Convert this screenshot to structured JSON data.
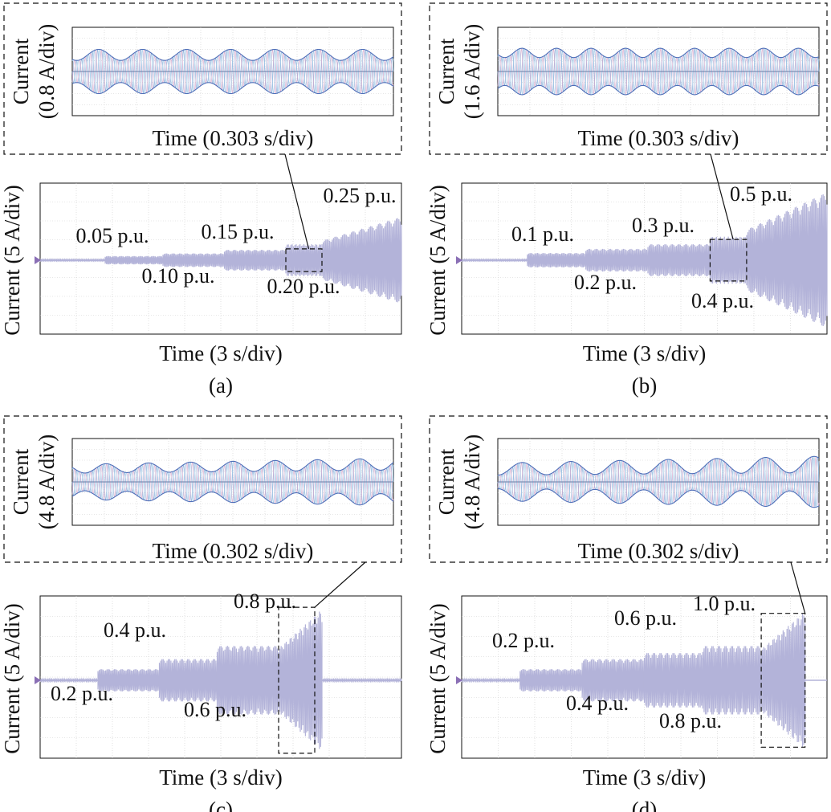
{
  "colors": {
    "waveform": "#b3b3d9",
    "zoom_trace_1": "#7ea6d6",
    "zoom_trace_2": "#d9a6c9",
    "zoom_trace_3": "#9cc7e6",
    "zoom_trace_4": "#4f6fb8",
    "grid": "#cfcfcf",
    "marker": "#8a6fb5",
    "frame": "#111111"
  },
  "chart_data": [
    {
      "id": "a",
      "caption": "(a)",
      "type": "line",
      "zoom": {
        "ylabel_top": "Current",
        "ylabel_bottom": "(0.8 A/div)",
        "xlabel": "Time (0.303 s/div)",
        "beat_cycles": 7.3,
        "phase": 0.4,
        "depth": 0.25,
        "amplitude_divs": 2.0
      },
      "main": {
        "ylabel": "Current (5 A/div)",
        "xlabel": "Time (3 s/div)",
        "x_divs": 10,
        "y_divs": 8,
        "zoom_window": {
          "x_start_div": 6.8,
          "x_end_div": 7.8,
          "half_height_divs": 0.6
        },
        "segments": [
          {
            "label": "",
            "x_start_div": 0,
            "x_end_div": 1.8,
            "amplitude_divs": 0.04
          },
          {
            "label": "0.05 p.u.",
            "x_start_div": 1.8,
            "x_end_div": 3.4,
            "amplitude_divs": 0.22
          },
          {
            "label": "0.10 p.u.",
            "x_start_div": 3.4,
            "x_end_div": 5.1,
            "amplitude_divs": 0.36
          },
          {
            "label": "0.15 p.u.",
            "x_start_div": 5.1,
            "x_end_div": 6.8,
            "amplitude_divs": 0.55
          },
          {
            "label": "0.20 p.u.",
            "x_start_div": 6.8,
            "x_end_div": 7.8,
            "amplitude_divs": 0.85
          },
          {
            "label": "0.25 p.u.",
            "x_start_div": 7.8,
            "x_end_div": 10,
            "amplitude_divs": 2.3,
            "growing": true
          }
        ]
      }
    },
    {
      "id": "b",
      "caption": "(b)",
      "type": "line",
      "zoom": {
        "ylabel_top": "Current",
        "ylabel_bottom": "(1.6 A/div)",
        "xlabel": "Time (0.303 s/div)",
        "beat_cycles": 9.3,
        "phase": 0.3,
        "depth": 0.2,
        "amplitude_divs": 2.1
      },
      "main": {
        "ylabel": "Current (5 A/div)",
        "xlabel": "Time (3 s/div)",
        "x_divs": 10,
        "y_divs": 8,
        "zoom_window": {
          "x_start_div": 6.8,
          "x_end_div": 7.8,
          "half_height_divs": 1.1
        },
        "segments": [
          {
            "label": "",
            "x_start_div": 0,
            "x_end_div": 1.8,
            "amplitude_divs": 0.04
          },
          {
            "label": "0.1 p.u.",
            "x_start_div": 1.8,
            "x_end_div": 3.4,
            "amplitude_divs": 0.38
          },
          {
            "label": "0.2 p.u.",
            "x_start_div": 3.4,
            "x_end_div": 5.1,
            "amplitude_divs": 0.6
          },
          {
            "label": "0.3 p.u.",
            "x_start_div": 5.1,
            "x_end_div": 6.8,
            "amplitude_divs": 0.85
          },
          {
            "label": "0.4 p.u.",
            "x_start_div": 6.8,
            "x_end_div": 7.8,
            "amplitude_divs": 1.25
          },
          {
            "label": "0.5 p.u.",
            "x_start_div": 7.8,
            "x_end_div": 10,
            "amplitude_divs": 3.6,
            "growing": true
          }
        ]
      }
    },
    {
      "id": "c",
      "caption": "(c)",
      "type": "line",
      "zoom": {
        "ylabel_top": "Current",
        "ylabel_bottom": "(4.8 A/div)",
        "xlabel": "Time (0.302 s/div)",
        "beat_cycles": 7.6,
        "phase": 0.2,
        "depth": 0.25,
        "amplitude_divs": 1.9,
        "growing": true
      },
      "main": {
        "ylabel": "Current (5 A/div)",
        "xlabel": "Time (3 s/div)",
        "x_divs": 10,
        "y_divs": 8,
        "zoom_window": {
          "x_start_div": 6.6,
          "x_end_div": 7.6,
          "half_height_divs": 3.6
        },
        "segments": [
          {
            "label": "",
            "x_start_div": 0,
            "x_end_div": 1.6,
            "amplitude_divs": 0.05
          },
          {
            "label": "0.2 p.u.",
            "x_start_div": 1.6,
            "x_end_div": 3.3,
            "amplitude_divs": 0.55
          },
          {
            "label": "0.4 p.u.",
            "x_start_div": 3.3,
            "x_end_div": 4.9,
            "amplitude_divs": 1.05
          },
          {
            "label": "0.6 p.u.",
            "x_start_div": 4.9,
            "x_end_div": 6.6,
            "amplitude_divs": 1.7
          },
          {
            "label": "0.8 p.u.",
            "x_start_div": 6.6,
            "x_end_div": 7.8,
            "amplitude_divs": 3.5,
            "growing": true
          },
          {
            "label": "",
            "x_start_div": 7.8,
            "x_end_div": 10,
            "amplitude_divs": 0.05
          }
        ]
      }
    },
    {
      "id": "d",
      "caption": "(d)",
      "type": "line",
      "zoom": {
        "ylabel_top": "Current",
        "ylabel_bottom": "(4.8 A/div)",
        "xlabel": "Time (0.302 s/div)",
        "beat_cycles": 6.6,
        "phase": 0.5,
        "depth": 0.32,
        "amplitude_divs": 2.05,
        "growing": true
      },
      "main": {
        "ylabel": "Current (5 A/div)",
        "xlabel": "Time (3 s/div)",
        "x_divs": 10,
        "y_divs": 8,
        "zoom_window": {
          "x_start_div": 8.2,
          "x_end_div": 9.4,
          "half_height_divs": 3.3
        },
        "segments": [
          {
            "label": "",
            "x_start_div": 0,
            "x_end_div": 1.6,
            "amplitude_divs": 0.05
          },
          {
            "label": "0.2 p.u.",
            "x_start_div": 1.6,
            "x_end_div": 3.3,
            "amplitude_divs": 0.55
          },
          {
            "label": "0.4 p.u.",
            "x_start_div": 3.3,
            "x_end_div": 5.0,
            "amplitude_divs": 1.05
          },
          {
            "label": "0.6 p.u.",
            "x_start_div": 5.0,
            "x_end_div": 6.6,
            "amplitude_divs": 1.35
          },
          {
            "label": "0.8 p.u.",
            "x_start_div": 6.6,
            "x_end_div": 8.2,
            "amplitude_divs": 1.7
          },
          {
            "label": "1.0 p.u.",
            "x_start_div": 8.2,
            "x_end_div": 9.4,
            "amplitude_divs": 3.4,
            "growing": true
          }
        ]
      }
    }
  ]
}
